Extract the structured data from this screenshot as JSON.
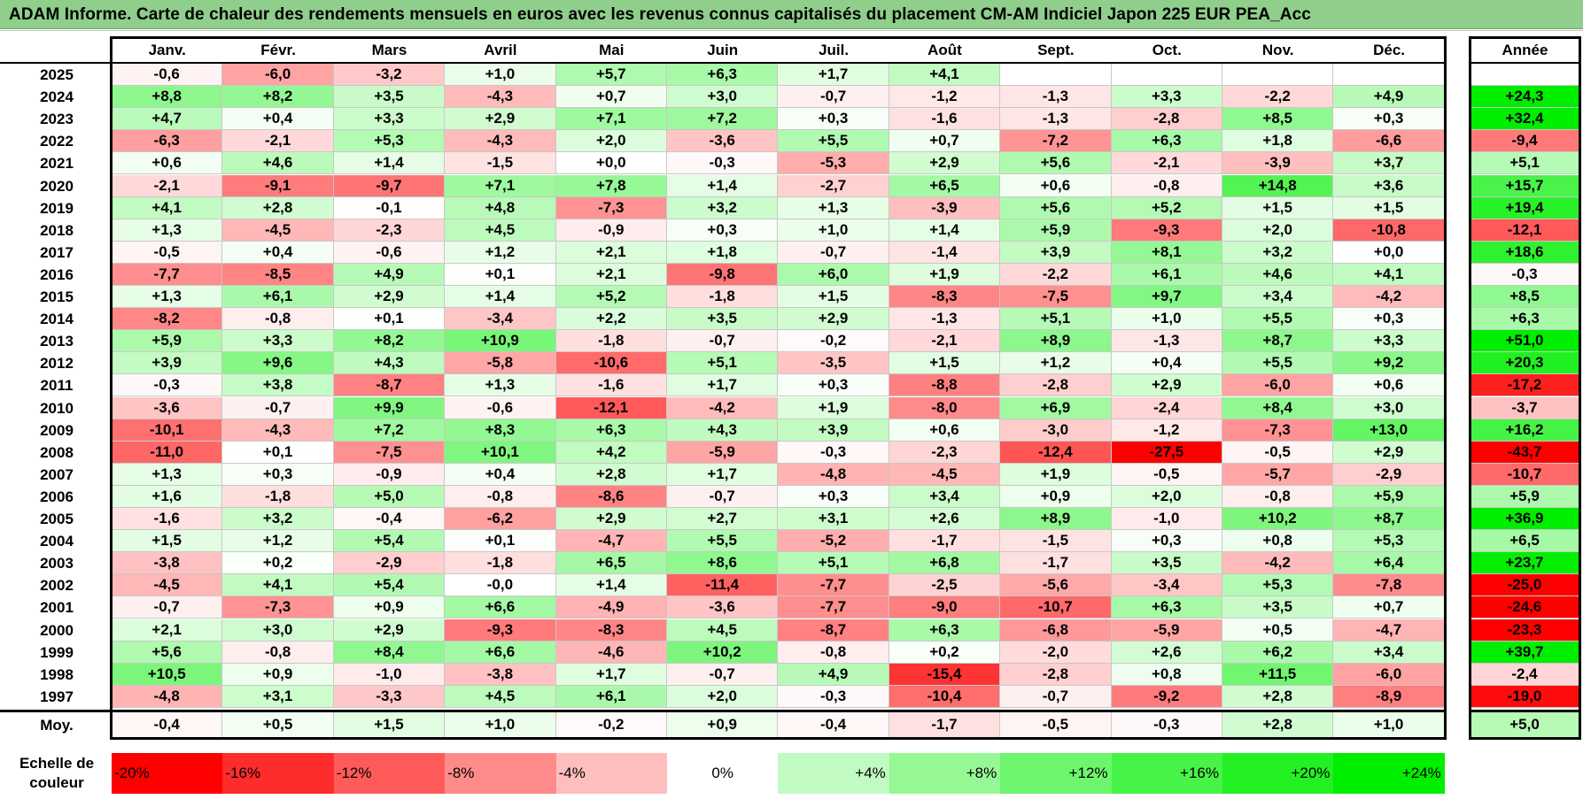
{
  "title": "ADAM Informe. Carte de chaleur des rendements mensuels en euros avec les revenus connus capitalisés du placement CM-AM Indiciel Japon 225 EUR PEA_Acc",
  "chart_data": {
    "type": "heatmap",
    "title": "ADAM Informe. Carte de chaleur des rendements mensuels en euros avec les revenus connus capitalisés du placement CM-AM Indiciel Japon 225 EUR PEA_Acc",
    "columns": [
      "Janv.",
      "Févr.",
      "Mars",
      "Avril",
      "Mai",
      "Juin",
      "Juil.",
      "Août",
      "Sept.",
      "Oct.",
      "Nov.",
      "Déc."
    ],
    "year_header": "Année",
    "rows": [
      {
        "year": "2025",
        "months": [
          "-0,6",
          "-6,0",
          "-3,2",
          "+1,0",
          "+5,7",
          "+6,3",
          "+1,7",
          "+4,1",
          "",
          "",
          "",
          ""
        ],
        "annual": ""
      },
      {
        "year": "2024",
        "months": [
          "+8,8",
          "+8,2",
          "+3,5",
          "-4,3",
          "+0,7",
          "+3,0",
          "-0,7",
          "-1,2",
          "-1,3",
          "+3,3",
          "-2,2",
          "+4,9"
        ],
        "annual": "+24,3"
      },
      {
        "year": "2023",
        "months": [
          "+4,7",
          "+0,4",
          "+3,3",
          "+2,9",
          "+7,1",
          "+7,2",
          "+0,3",
          "-1,6",
          "-1,3",
          "-2,8",
          "+8,5",
          "+0,3"
        ],
        "annual": "+32,4"
      },
      {
        "year": "2022",
        "months": [
          "-6,3",
          "-2,1",
          "+5,3",
          "-4,3",
          "+2,0",
          "-3,6",
          "+5,5",
          "+0,7",
          "-7,2",
          "+6,3",
          "+1,8",
          "-6,6"
        ],
        "annual": "-9,4"
      },
      {
        "year": "2021",
        "months": [
          "+0,6",
          "+4,6",
          "+1,4",
          "-1,5",
          "+0,0",
          "-0,3",
          "-5,3",
          "+2,9",
          "+5,6",
          "-2,1",
          "-3,9",
          "+3,7"
        ],
        "annual": "+5,1"
      },
      {
        "year": "2020",
        "months": [
          "-2,1",
          "-9,1",
          "-9,7",
          "+7,1",
          "+7,8",
          "+1,4",
          "-2,7",
          "+6,5",
          "+0,6",
          "-0,8",
          "+14,8",
          "+3,6"
        ],
        "annual": "+15,7"
      },
      {
        "year": "2019",
        "months": [
          "+4,1",
          "+2,8",
          "-0,1",
          "+4,8",
          "-7,3",
          "+3,2",
          "+1,3",
          "-3,9",
          "+5,6",
          "+5,2",
          "+1,5",
          "+1,5"
        ],
        "annual": "+19,4"
      },
      {
        "year": "2018",
        "months": [
          "+1,3",
          "-4,5",
          "-2,3",
          "+4,5",
          "-0,9",
          "+0,3",
          "+1,0",
          "+1,4",
          "+5,9",
          "-9,3",
          "+2,0",
          "-10,8"
        ],
        "annual": "-12,1"
      },
      {
        "year": "2017",
        "months": [
          "-0,5",
          "+0,4",
          "-0,6",
          "+1,2",
          "+2,1",
          "+1,8",
          "-0,7",
          "-1,4",
          "+3,9",
          "+8,1",
          "+3,2",
          "+0,0"
        ],
        "annual": "+18,6"
      },
      {
        "year": "2016",
        "months": [
          "-7,7",
          "-8,5",
          "+4,9",
          "+0,1",
          "+2,1",
          "-9,8",
          "+6,0",
          "+1,9",
          "-2,2",
          "+6,1",
          "+4,6",
          "+4,1"
        ],
        "annual": "-0,3"
      },
      {
        "year": "2015",
        "months": [
          "+1,3",
          "+6,1",
          "+2,9",
          "+1,4",
          "+5,2",
          "-1,8",
          "+1,5",
          "-8,3",
          "-7,5",
          "+9,7",
          "+3,4",
          "-4,2"
        ],
        "annual": "+8,5"
      },
      {
        "year": "2014",
        "months": [
          "-8,2",
          "-0,8",
          "+0,1",
          "-3,4",
          "+2,2",
          "+3,5",
          "+2,9",
          "-1,3",
          "+5,1",
          "+1,0",
          "+5,5",
          "+0,3"
        ],
        "annual": "+6,3"
      },
      {
        "year": "2013",
        "months": [
          "+5,9",
          "+3,3",
          "+8,2",
          "+10,9",
          "-1,8",
          "-0,7",
          "-0,2",
          "-2,1",
          "+8,9",
          "-1,3",
          "+8,7",
          "+3,3"
        ],
        "annual": "+51,0"
      },
      {
        "year": "2012",
        "months": [
          "+3,9",
          "+9,6",
          "+4,3",
          "-5,8",
          "-10,6",
          "+5,1",
          "-3,5",
          "+1,5",
          "+1,2",
          "+0,4",
          "+5,5",
          "+9,2"
        ],
        "annual": "+20,3"
      },
      {
        "year": "2011",
        "months": [
          "-0,3",
          "+3,8",
          "-8,7",
          "+1,3",
          "-1,6",
          "+1,7",
          "+0,3",
          "-8,8",
          "-2,8",
          "+2,9",
          "-6,0",
          "+0,6"
        ],
        "annual": "-17,2"
      },
      {
        "year": "2010",
        "months": [
          "-3,6",
          "-0,7",
          "+9,9",
          "-0,6",
          "-12,1",
          "-4,2",
          "+1,9",
          "-8,0",
          "+6,9",
          "-2,4",
          "+8,4",
          "+3,0"
        ],
        "annual": "-3,7"
      },
      {
        "year": "2009",
        "months": [
          "-10,1",
          "-4,3",
          "+7,2",
          "+8,3",
          "+6,3",
          "+4,3",
          "+3,9",
          "+0,6",
          "-3,0",
          "-1,2",
          "-7,3",
          "+13,0"
        ],
        "annual": "+16,2"
      },
      {
        "year": "2008",
        "months": [
          "-11,0",
          "+0,1",
          "-7,5",
          "+10,1",
          "+4,2",
          "-5,9",
          "-0,3",
          "-2,3",
          "-12,4",
          "-27,5",
          "-0,5",
          "+2,9"
        ],
        "annual": "-43,7"
      },
      {
        "year": "2007",
        "months": [
          "+1,3",
          "+0,3",
          "-0,9",
          "+0,4",
          "+2,8",
          "+1,7",
          "-4,8",
          "-4,5",
          "+1,9",
          "-0,5",
          "-5,7",
          "-2,9"
        ],
        "annual": "-10,7"
      },
      {
        "year": "2006",
        "months": [
          "+1,6",
          "-1,8",
          "+5,0",
          "-0,8",
          "-8,6",
          "-0,7",
          "+0,3",
          "+3,4",
          "+0,9",
          "+2,0",
          "-0,8",
          "+5,9"
        ],
        "annual": "+5,9"
      },
      {
        "year": "2005",
        "months": [
          "-1,6",
          "+3,2",
          "-0,4",
          "-6,2",
          "+2,9",
          "+2,7",
          "+3,1",
          "+2,6",
          "+8,9",
          "-1,0",
          "+10,2",
          "+8,7"
        ],
        "annual": "+36,9"
      },
      {
        "year": "2004",
        "months": [
          "+1,5",
          "+1,2",
          "+5,4",
          "+0,1",
          "-4,7",
          "+5,5",
          "-5,2",
          "-1,7",
          "-1,5",
          "+0,3",
          "+0,8",
          "+5,3"
        ],
        "annual": "+6,5"
      },
      {
        "year": "2003",
        "months": [
          "-3,8",
          "+0,2",
          "-2,9",
          "-1,8",
          "+6,5",
          "+8,6",
          "+5,1",
          "+6,8",
          "-1,7",
          "+3,5",
          "-4,2",
          "+6,4"
        ],
        "annual": "+23,7"
      },
      {
        "year": "2002",
        "months": [
          "-4,5",
          "+4,1",
          "+5,4",
          "-0,0",
          "+1,4",
          "-11,4",
          "-7,7",
          "-2,5",
          "-5,6",
          "-3,4",
          "+5,3",
          "-7,8"
        ],
        "annual": "-25,0"
      },
      {
        "year": "2001",
        "months": [
          "-0,7",
          "-7,3",
          "+0,9",
          "+6,6",
          "-4,9",
          "-3,6",
          "-7,7",
          "-9,0",
          "-10,7",
          "+6,3",
          "+3,5",
          "+0,7"
        ],
        "annual": "-24,6"
      },
      {
        "year": "2000",
        "months": [
          "+2,1",
          "+3,0",
          "+2,9",
          "-9,3",
          "-8,3",
          "+4,5",
          "-8,7",
          "+6,3",
          "-6,8",
          "-5,9",
          "+0,5",
          "-4,7"
        ],
        "annual": "-23,3"
      },
      {
        "year": "1999",
        "months": [
          "+5,6",
          "-0,8",
          "+8,4",
          "+6,6",
          "-4,6",
          "+10,2",
          "-0,8",
          "+0,2",
          "-2,0",
          "+2,6",
          "+6,2",
          "+3,4"
        ],
        "annual": "+39,7"
      },
      {
        "year": "1998",
        "months": [
          "+10,5",
          "+0,9",
          "-1,0",
          "-3,8",
          "+1,7",
          "-0,7",
          "+4,9",
          "-15,4",
          "-2,8",
          "+0,8",
          "+11,5",
          "-6,0"
        ],
        "annual": "-2,4"
      },
      {
        "year": "1997",
        "months": [
          "-4,8",
          "+3,1",
          "-3,3",
          "+4,5",
          "+6,1",
          "+2,0",
          "-0,3",
          "-10,4",
          "-0,7",
          "-9,2",
          "+2,8",
          "-8,9"
        ],
        "annual": "-19,0"
      }
    ],
    "average_row": {
      "label": "Moy.",
      "months": [
        "-0,4",
        "+0,5",
        "+1,5",
        "+1,0",
        "-0,2",
        "+0,9",
        "-0,4",
        "-1,7",
        "-0,5",
        "-0,3",
        "+2,8",
        "+1,0"
      ],
      "annual": "+5,0"
    },
    "legend": {
      "label": "Echelle de couleur",
      "steps": [
        {
          "label": "-20%",
          "value": -20
        },
        {
          "label": "-16%",
          "value": -16
        },
        {
          "label": "-12%",
          "value": -12
        },
        {
          "label": "-8%",
          "value": -8
        },
        {
          "label": "-4%",
          "value": -4
        },
        {
          "label": "0%",
          "value": 0
        },
        {
          "label": "+4%",
          "value": 4
        },
        {
          "label": "+8%",
          "value": 8
        },
        {
          "label": "+12%",
          "value": 12
        },
        {
          "label": "+16%",
          "value": 16
        },
        {
          "label": "+20%",
          "value": 20
        },
        {
          "label": "+24%",
          "value": 24
        }
      ]
    },
    "colors": {
      "scale_min": -20,
      "scale_max": 24,
      "neg_max": "#ff0000",
      "neutral": "#ffffff",
      "pos_max": "#00ee00",
      "title_bg": "#8fce8b"
    }
  }
}
